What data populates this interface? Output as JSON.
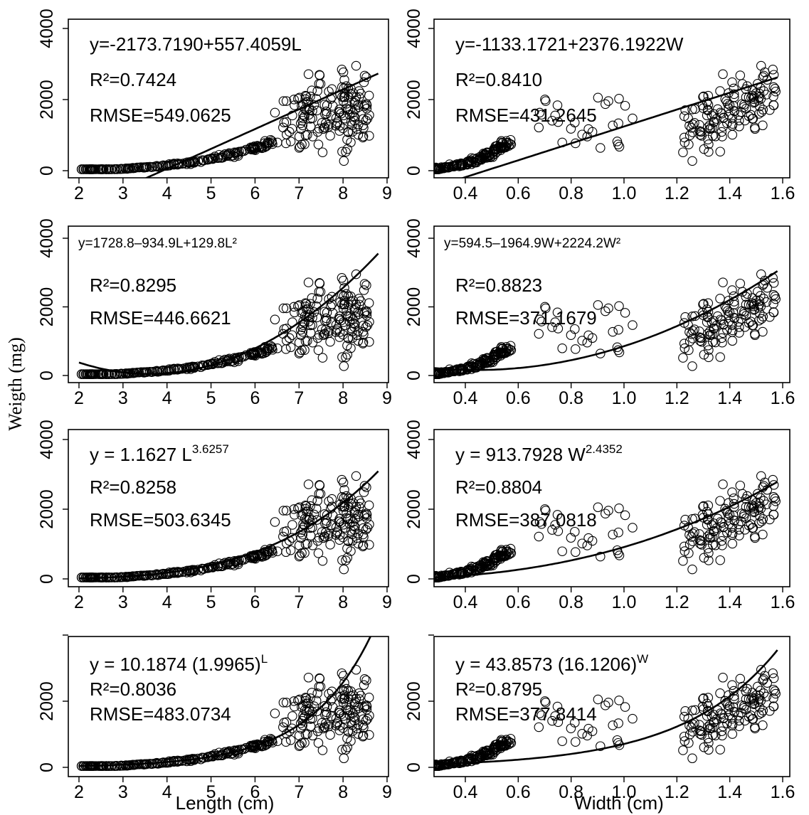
{
  "figure": {
    "ylabel": "Weigth (mg)",
    "xlabel_left": "Length (cm)",
    "xlabel_right": "Width (cm)"
  },
  "chart_data": [
    {
      "type": "scatter",
      "var": "L",
      "model": "linear",
      "xlim": [
        2,
        9
      ],
      "ylim": [
        0,
        4000
      ],
      "xticks": [
        "2",
        "3",
        "4",
        "5",
        "6",
        "7",
        "8",
        "9"
      ],
      "yticks": [
        "0",
        "2000",
        "4000"
      ],
      "equation": "y=-2173.7190+557.4059L",
      "r2": "R²=0.7424",
      "rmse": "RMSE=549.0625",
      "fit": {
        "a": -2173.719,
        "b": 557.4059
      },
      "grid": false
    },
    {
      "type": "scatter",
      "var": "W",
      "model": "linear",
      "xlim": [
        0.3,
        1.6
      ],
      "ylim": [
        0,
        4000
      ],
      "xticks": [
        "0.4",
        "0.6",
        "0.8",
        "1.0",
        "1.2",
        "1.4",
        "1.6"
      ],
      "yticks": [
        "0",
        "2000",
        "4000"
      ],
      "equation": "y=-1133.1721+2376.1922W",
      "r2": "R²=0.8410",
      "rmse": "RMSE=431.2645",
      "fit": {
        "a": -1133.1721,
        "b": 2376.1922
      },
      "grid": false
    },
    {
      "type": "scatter",
      "var": "L",
      "model": "quadratic",
      "xlim": [
        2,
        9
      ],
      "ylim": [
        0,
        4000
      ],
      "xticks": [
        "2",
        "3",
        "4",
        "5",
        "6",
        "7",
        "8",
        "9"
      ],
      "yticks": [
        "0",
        "2000",
        "4000"
      ],
      "equation": "y=1728.8–934.9L+129.8L²",
      "r2": "R²=0.8295",
      "rmse": "RMSE=446.6621",
      "fit": {
        "a": 1728.8,
        "b": -934.9,
        "c": 129.8
      },
      "grid": false
    },
    {
      "type": "scatter",
      "var": "W",
      "model": "quadratic",
      "xlim": [
        0.3,
        1.6
      ],
      "ylim": [
        0,
        4000
      ],
      "xticks": [
        "0.4",
        "0.6",
        "0.8",
        "1.0",
        "1.2",
        "1.4",
        "1.6"
      ],
      "yticks": [
        "0",
        "2000",
        "4000"
      ],
      "equation": "y=594.5–1964.9W+2224.2W²",
      "r2": "R²=0.8823",
      "rmse": "RMSE=371.1679",
      "fit": {
        "a": 594.5,
        "b": -1964.9,
        "c": 2224.2
      },
      "grid": false
    },
    {
      "type": "scatter",
      "var": "L",
      "model": "power",
      "xlim": [
        2,
        9
      ],
      "ylim": [
        0,
        4000
      ],
      "xticks": [
        "2",
        "3",
        "4",
        "5",
        "6",
        "7",
        "8",
        "9"
      ],
      "yticks": [
        "0",
        "2000",
        "4000"
      ],
      "equation": "y =  1.1627 L",
      "exponent": "3.6257",
      "r2": "R²=0.8258",
      "rmse": "RMSE=503.6345",
      "fit": {
        "a": 1.1627,
        "b": 3.6257
      },
      "grid": false
    },
    {
      "type": "scatter",
      "var": "W",
      "model": "power",
      "xlim": [
        0.3,
        1.6
      ],
      "ylim": [
        0,
        4000
      ],
      "xticks": [
        "0.4",
        "0.6",
        "0.8",
        "1.0",
        "1.2",
        "1.4",
        "1.6"
      ],
      "yticks": [
        "0",
        "2000",
        "4000"
      ],
      "equation": "y =  913.7928 W",
      "exponent": "2.4352",
      "r2": "R²=0.8804",
      "rmse": "RMSE=387.0818",
      "fit": {
        "a": 913.7928,
        "b": 2.4352
      },
      "grid": false
    },
    {
      "type": "scatter",
      "var": "L",
      "model": "exponential",
      "xlim": [
        2,
        9
      ],
      "ylim": [
        0,
        4000
      ],
      "xticks": [
        "2",
        "3",
        "4",
        "5",
        "6",
        "7",
        "8",
        "9"
      ],
      "yticks": [
        "0",
        "2000"
      ],
      "equation": "y =  10.1874 (1.9965)",
      "exponent": "L",
      "r2": "R²=0.8036",
      "rmse": "RMSE=483.0734",
      "fit": {
        "a": 10.1874,
        "b": 1.9965
      },
      "grid": false
    },
    {
      "type": "scatter",
      "var": "W",
      "model": "exponential",
      "xlim": [
        0.3,
        1.6
      ],
      "ylim": [
        0,
        4000
      ],
      "xticks": [
        "0.4",
        "0.6",
        "0.8",
        "1.0",
        "1.2",
        "1.4",
        "1.6"
      ],
      "yticks": [
        "0",
        "2000"
      ],
      "equation": "y =  43.8573 (16.1206)",
      "exponent": "W",
      "r2": "R²=0.8795",
      "rmse": "RMSE=377.8414",
      "fit": {
        "a": 43.8573,
        "b": 16.1206
      },
      "grid": false
    }
  ]
}
